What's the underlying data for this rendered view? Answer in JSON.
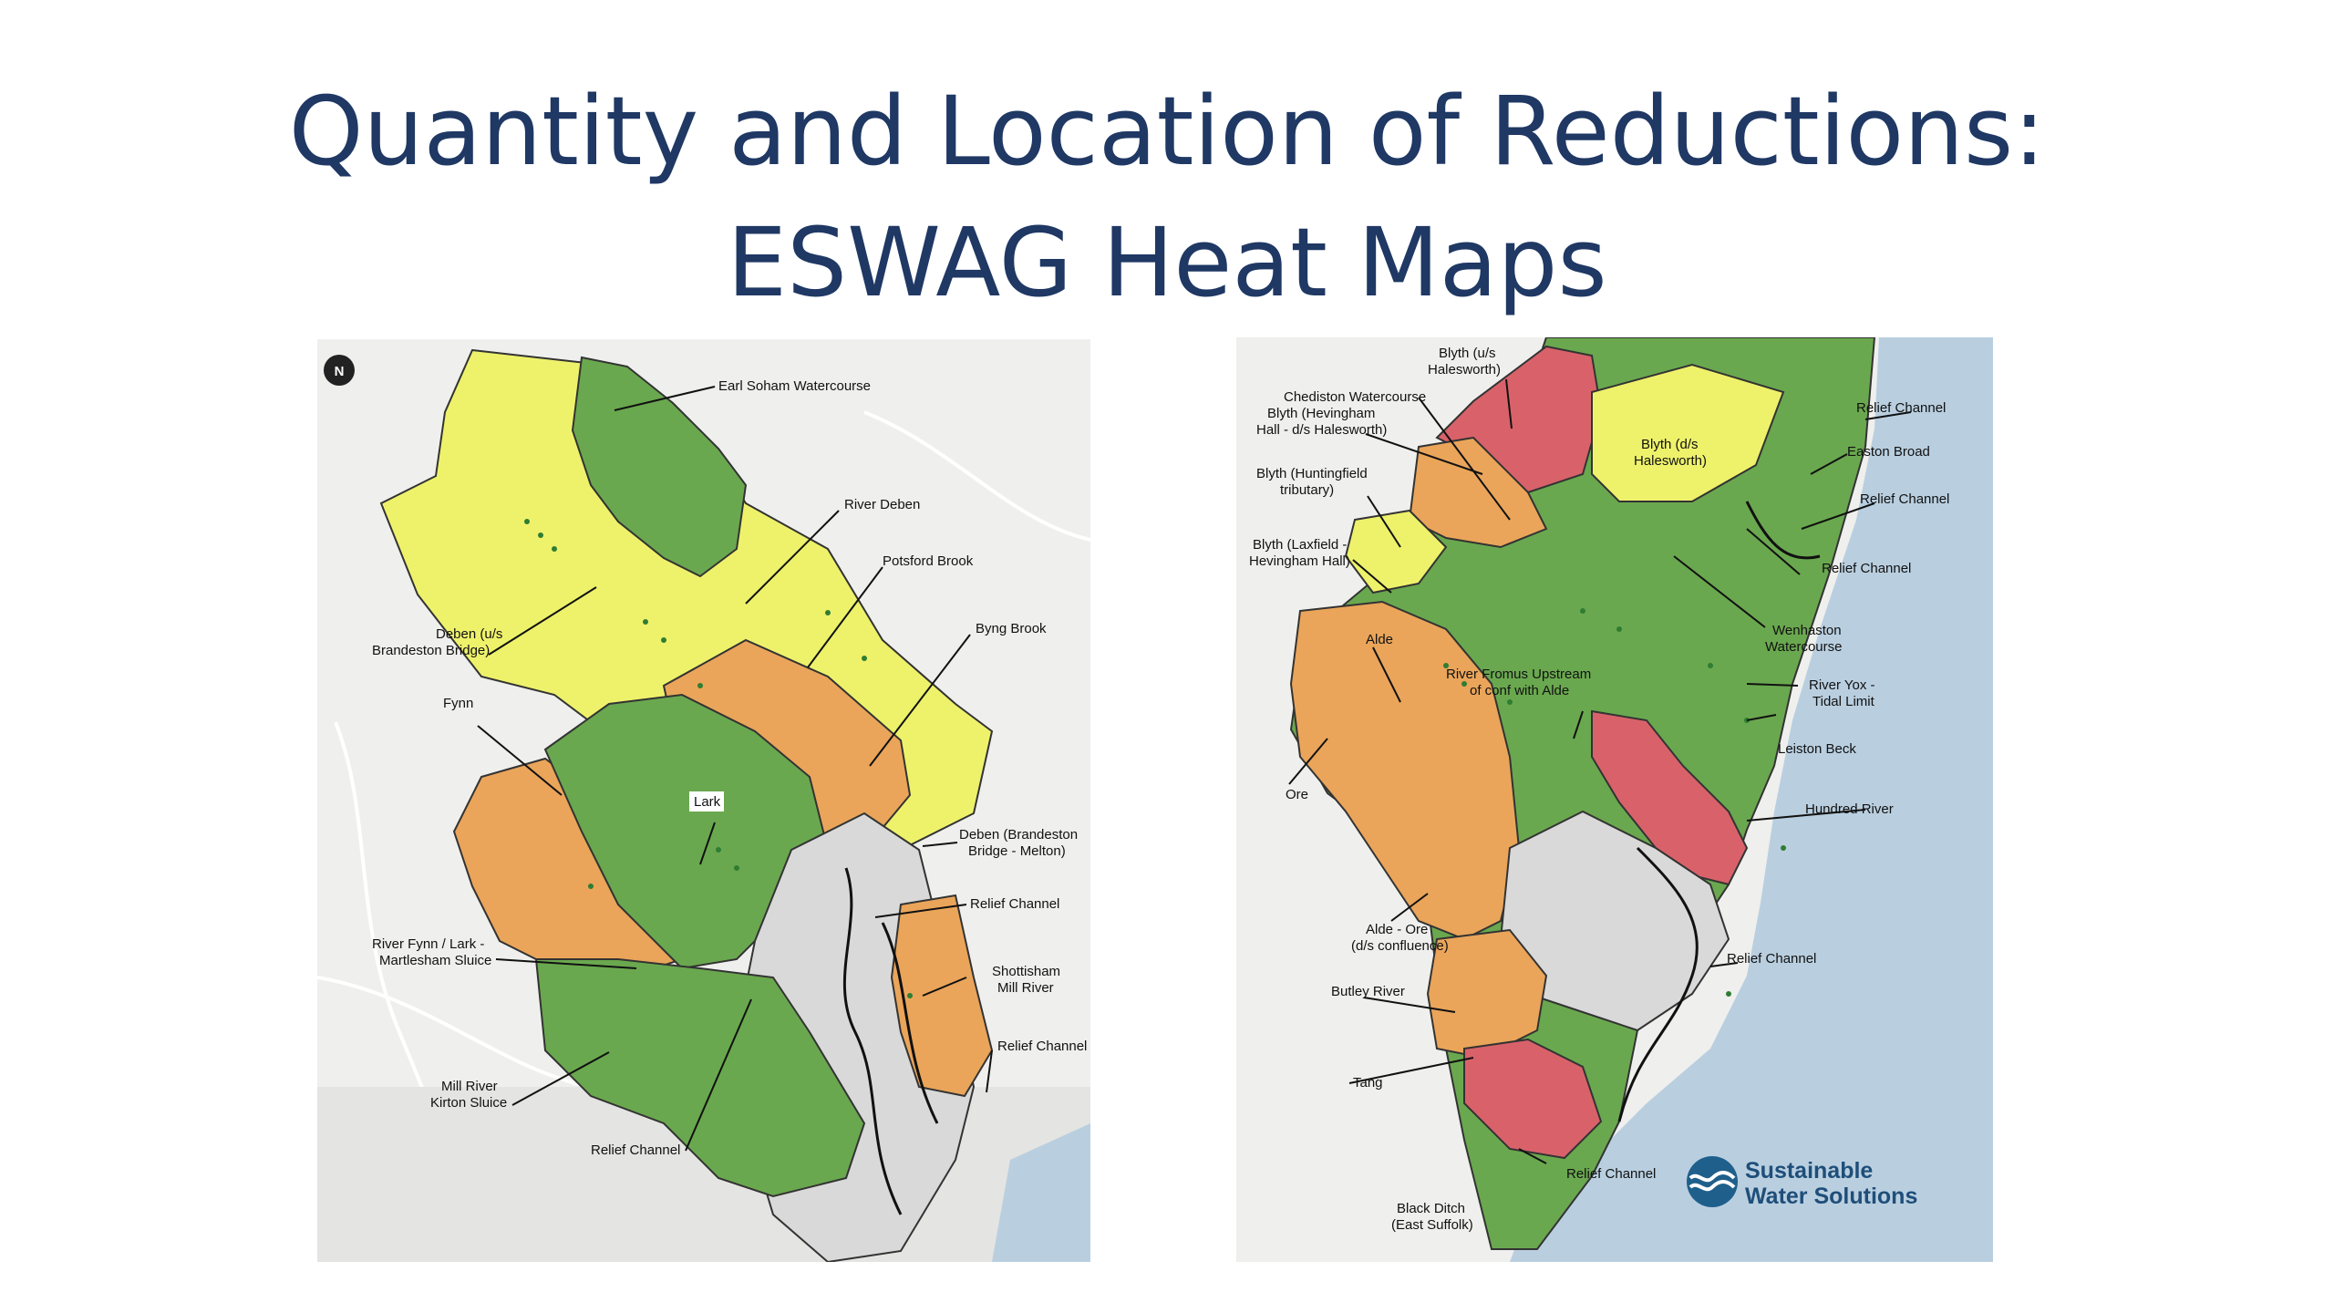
{
  "slide": {
    "title_line1": "Quantity and Location of Reductions:",
    "title_line2": "ESWAG Heat Maps"
  },
  "colors": {
    "green": "#6aa84f",
    "yellow": "#eef26b",
    "orange": "#eaa55a",
    "red": "#d9626a",
    "grey": "#d9d9d9",
    "sea": "#b9cfe0",
    "background": "#f0f0ee",
    "title": "#1f3864"
  },
  "left_map": {
    "north_arrow_label": "N",
    "labels": [
      "Earl Soham Watercourse",
      "River Deben",
      "Potsford Brook",
      "Byng Brook",
      "Deben (u/s",
      "Brandeston Bridge)",
      "Fynn",
      "Lark",
      "Deben (Brandeston",
      "Bridge - Melton)",
      "Relief Channel",
      "River Fynn / Lark -",
      "Martlesham Sluice",
      "Shottisham",
      "Mill River",
      "Relief Channel",
      "Mill River",
      "Kirton Sluice",
      "Relief Channel"
    ]
  },
  "right_map": {
    "labels": [
      "Blyth (u/s",
      "Halesworth)",
      "Chediston Watercourse",
      "Blyth (Hevingham",
      "Hall - d/s Halesworth)",
      "Relief Channel",
      "Easton Broad",
      "Blyth (d/s",
      "Halesworth)",
      "Blyth (Huntingfield",
      "tributary)",
      "Relief Channel",
      "Blyth (Laxfield -",
      "Hevingham Hall)",
      "Relief Channel",
      "Wenhaston",
      "Watercourse",
      "Alde",
      "River Fromus Upstream",
      "of conf with Alde",
      "River Yox -",
      "Tidal Limit",
      "Leiston Beck",
      "Ore",
      "Hundred River",
      "Alde - Ore",
      "(d/s confluence)",
      "Relief Channel",
      "Butley River",
      "Tang",
      "Relief Channel",
      "Black Ditch",
      "(East Suffolk)"
    ],
    "logo_line1": "Sustainable",
    "logo_line2": "Water Solutions"
  }
}
